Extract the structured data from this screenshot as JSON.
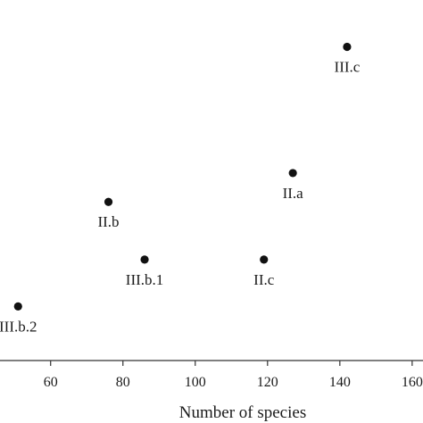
{
  "chart_data": {
    "type": "scatter",
    "title": "",
    "xlabel": "Number of species",
    "ylabel": "",
    "xlim": [
      46,
      163
    ],
    "ylim": [
      0,
      100
    ],
    "x_ticks": [
      60,
      80,
      100,
      120,
      140,
      160
    ],
    "x_tick_labels": [
      "60",
      "80",
      "100",
      "120",
      "140",
      "160"
    ],
    "grid": false,
    "legend": "none",
    "marker_color": "#111111",
    "points": [
      {
        "label": "III.c",
        "x": 142,
        "y": 87
      },
      {
        "label": "II.a",
        "x": 127,
        "y": 52
      },
      {
        "label": "II.b",
        "x": 76,
        "y": 44
      },
      {
        "label": "III.b.1",
        "x": 86,
        "y": 28
      },
      {
        "label": "II.c",
        "x": 119,
        "y": 28
      },
      {
        "label": "III.b.2",
        "x": 51,
        "y": 15
      }
    ]
  }
}
